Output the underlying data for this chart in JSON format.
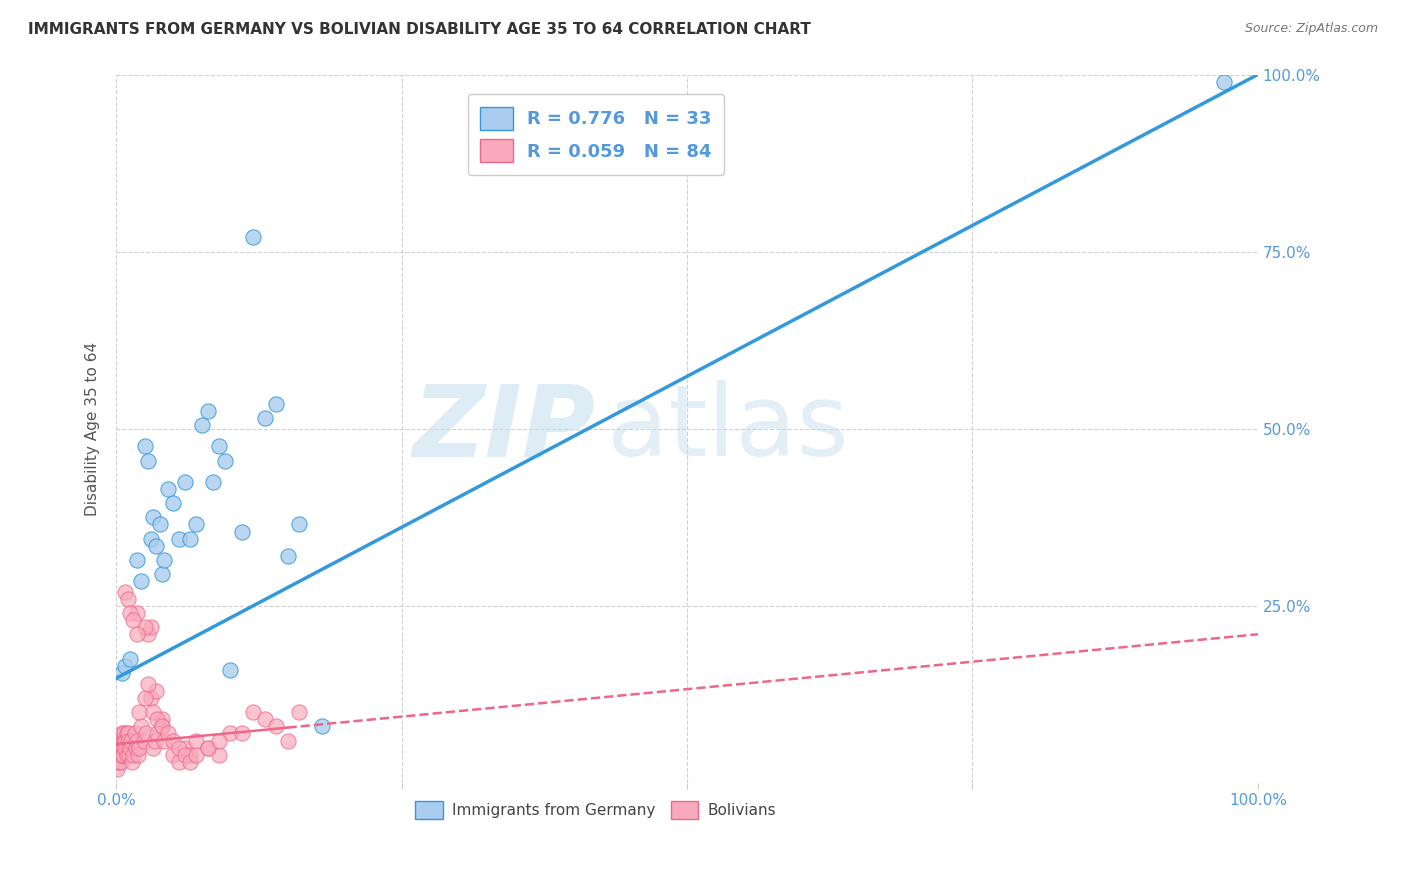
{
  "title": "IMMIGRANTS FROM GERMANY VS BOLIVIAN DISABILITY AGE 35 TO 64 CORRELATION CHART",
  "source": "Source: ZipAtlas.com",
  "ylabel": "Disability Age 35 to 64",
  "xlim": [
    0,
    1.0
  ],
  "ylim": [
    0,
    1.0
  ],
  "background_color": "#ffffff",
  "grid_color": "#cccccc",
  "watermark_zip": "ZIP",
  "watermark_atlas": "atlas",
  "legend_R1": "R = 0.776",
  "legend_N1": "N = 33",
  "legend_R2": "R = 0.059",
  "legend_N2": "N = 84",
  "series1_color": "#aaccee",
  "series2_color": "#f8aabc",
  "trendline1_color": "#3399dd",
  "trendline2_color": "#ee6688",
  "series1_label": "Immigrants from Germany",
  "series2_label": "Bolivians",
  "tick_color": "#5599dd",
  "title_color": "#333333",
  "source_color": "#777777",
  "series1_x": [
    0.005,
    0.008,
    0.012,
    0.018,
    0.022,
    0.025,
    0.028,
    0.03,
    0.032,
    0.035,
    0.038,
    0.04,
    0.042,
    0.045,
    0.05,
    0.055,
    0.06,
    0.065,
    0.07,
    0.075,
    0.08,
    0.085,
    0.09,
    0.095,
    0.1,
    0.11,
    0.12,
    0.13,
    0.14,
    0.15,
    0.16,
    0.18,
    0.97
  ],
  "series1_y": [
    0.155,
    0.165,
    0.175,
    0.315,
    0.285,
    0.475,
    0.455,
    0.345,
    0.375,
    0.335,
    0.365,
    0.295,
    0.315,
    0.415,
    0.395,
    0.345,
    0.425,
    0.345,
    0.365,
    0.505,
    0.525,
    0.425,
    0.475,
    0.455,
    0.16,
    0.355,
    0.77,
    0.515,
    0.535,
    0.32,
    0.365,
    0.08,
    0.99
  ],
  "series2_x": [
    0.001,
    0.001,
    0.001,
    0.001,
    0.001,
    0.002,
    0.002,
    0.002,
    0.003,
    0.003,
    0.003,
    0.004,
    0.004,
    0.005,
    0.005,
    0.005,
    0.006,
    0.006,
    0.007,
    0.007,
    0.008,
    0.008,
    0.009,
    0.009,
    0.01,
    0.01,
    0.011,
    0.012,
    0.013,
    0.014,
    0.015,
    0.016,
    0.017,
    0.018,
    0.019,
    0.02,
    0.022,
    0.024,
    0.026,
    0.028,
    0.03,
    0.032,
    0.034,
    0.036,
    0.04,
    0.042,
    0.05,
    0.055,
    0.06,
    0.065,
    0.07,
    0.08,
    0.09,
    0.1,
    0.11,
    0.12,
    0.13,
    0.14,
    0.15,
    0.16,
    0.018,
    0.025,
    0.03,
    0.035,
    0.04,
    0.008,
    0.01,
    0.012,
    0.015,
    0.018,
    0.02,
    0.025,
    0.028,
    0.032,
    0.036,
    0.04,
    0.045,
    0.05,
    0.055,
    0.06,
    0.065,
    0.07,
    0.08,
    0.09
  ],
  "series2_y": [
    0.03,
    0.04,
    0.05,
    0.02,
    0.06,
    0.04,
    0.05,
    0.03,
    0.05,
    0.04,
    0.06,
    0.03,
    0.05,
    0.06,
    0.04,
    0.07,
    0.05,
    0.04,
    0.06,
    0.07,
    0.06,
    0.05,
    0.07,
    0.04,
    0.07,
    0.06,
    0.04,
    0.05,
    0.06,
    0.03,
    0.04,
    0.07,
    0.05,
    0.06,
    0.04,
    0.05,
    0.08,
    0.06,
    0.07,
    0.21,
    0.22,
    0.05,
    0.06,
    0.07,
    0.08,
    0.06,
    0.04,
    0.03,
    0.05,
    0.04,
    0.06,
    0.05,
    0.04,
    0.07,
    0.07,
    0.1,
    0.09,
    0.08,
    0.06,
    0.1,
    0.24,
    0.22,
    0.12,
    0.13,
    0.09,
    0.27,
    0.26,
    0.24,
    0.23,
    0.21,
    0.1,
    0.12,
    0.14,
    0.1,
    0.09,
    0.08,
    0.07,
    0.06,
    0.05,
    0.04,
    0.03,
    0.04,
    0.05,
    0.06
  ],
  "trendline1_x0": 0.0,
  "trendline1_y0": 0.148,
  "trendline1_x1": 1.0,
  "trendline1_y1": 1.0,
  "trendline2_x0": 0.0,
  "trendline2_y0": 0.055,
  "trendline2_x1": 1.0,
  "trendline2_y1": 0.21
}
